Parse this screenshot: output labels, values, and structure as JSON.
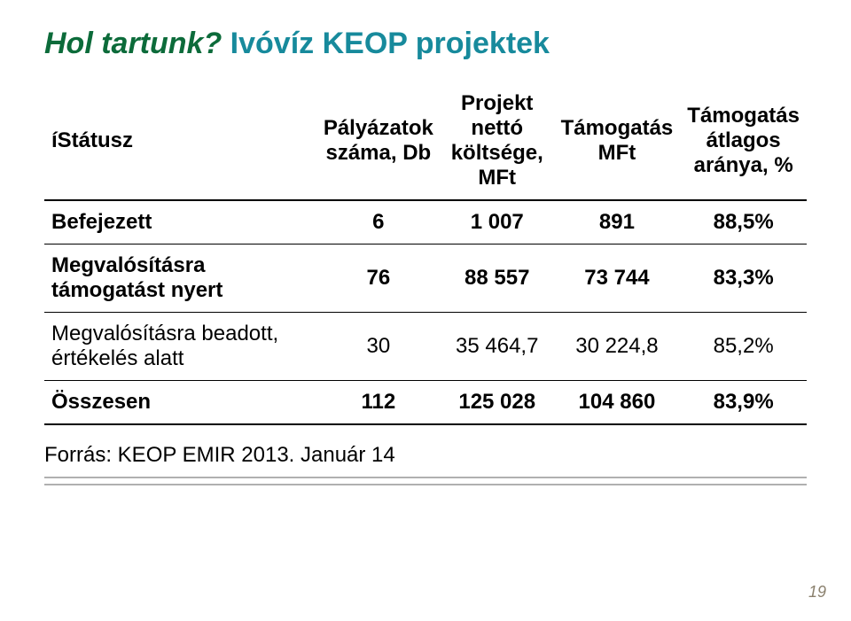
{
  "title": {
    "part1": "Hol tartunk?",
    "part2": "Ivóvíz KEOP projektek"
  },
  "table": {
    "headers": [
      "íStátusz",
      "Pályázatok száma, Db",
      "Projekt nettó költsége, MFt",
      "Támogatás MFt",
      "Támogatás átlagos aránya, %"
    ],
    "rows": [
      {
        "cells": [
          "Befejezett",
          "6",
          "1 007",
          "891",
          "88,5%"
        ],
        "bold": true
      },
      {
        "cells": [
          "Megvalósításra támogatást nyert",
          "76",
          "88 557",
          "73 744",
          "83,3%"
        ],
        "bold": true
      },
      {
        "cells": [
          "Megvalósításra beadott, értékelés alatt",
          "30",
          "35 464,7",
          "30 224,8",
          "85,2%"
        ],
        "bold": false
      },
      {
        "cells": [
          "Összesen",
          "112",
          "125 028",
          "104 860",
          "83,9%"
        ],
        "bold": true
      }
    ]
  },
  "source": "Forrás: KEOP EMIR 2013. Január 14",
  "page_number": "19",
  "colors": {
    "title1": "#0c6b3a",
    "title2": "#178a9c",
    "rule": "#b0b0b0",
    "pagenum": "#8a806d",
    "text": "#000000",
    "background": "#ffffff"
  }
}
